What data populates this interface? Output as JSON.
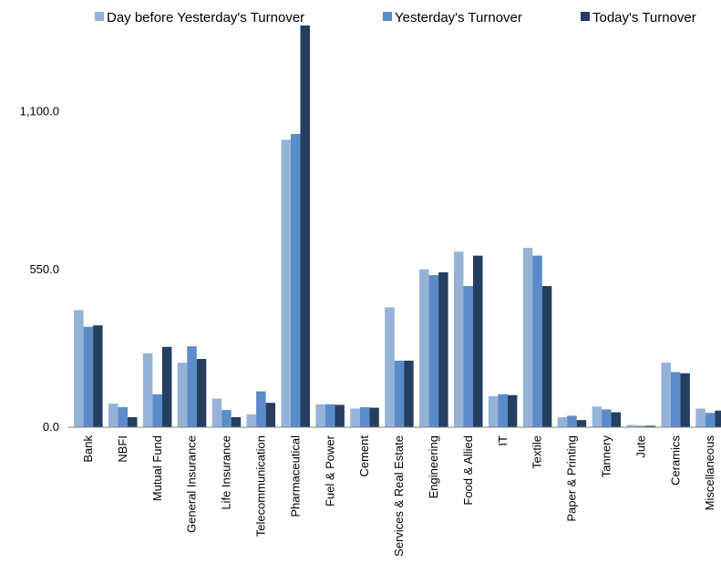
{
  "chart_data": {
    "type": "bar",
    "title": "",
    "xlabel": "",
    "ylabel": "",
    "ylim": [
      0,
      1400
    ],
    "yticks": [
      0,
      550,
      1100
    ],
    "ytick_labels": [
      "0.0",
      "550.0",
      "1,100.0"
    ],
    "legend_position": "top",
    "categories": [
      "Bank",
      "NBFI",
      "Mutual Fund",
      "General Insurance",
      "Life Insurance",
      "Telecommunication",
      "Pharmaceutical",
      "Fuel & Power",
      "Cement",
      "Services & Real Estate",
      "Engineering",
      "Food & Allied",
      "IT",
      "Textile",
      "Paper & Printing",
      "Tannery",
      "Jute",
      "Ceramics",
      "Miscellaneous"
    ],
    "series": [
      {
        "name": "Day before Yesterday's Turnover",
        "color": "#95b3d7",
        "values": [
          408,
          82,
          258,
          225,
          100,
          45,
          1002,
          80,
          65,
          418,
          550,
          612,
          108,
          625,
          35,
          72,
          8,
          225,
          65
        ]
      },
      {
        "name": "Yesterday's Turnover",
        "color": "#5b8bc9",
        "values": [
          350,
          70,
          115,
          282,
          60,
          125,
          1022,
          80,
          70,
          232,
          530,
          492,
          115,
          598,
          40,
          62,
          5,
          192,
          50
        ]
      },
      {
        "name": "Today's Turnover",
        "color": "#243f60",
        "values": [
          355,
          35,
          280,
          238,
          35,
          85,
          1400,
          78,
          68,
          232,
          540,
          598,
          112,
          492,
          25,
          52,
          5,
          188,
          58
        ]
      }
    ]
  },
  "legend": {
    "items": [
      {
        "label": "Day before Yesterday's Turnover",
        "color": "#95b3d7"
      },
      {
        "label": "Yesterday's Turnover",
        "color": "#5b8bc9"
      },
      {
        "label": "Today's Turnover",
        "color": "#243f60"
      }
    ]
  }
}
